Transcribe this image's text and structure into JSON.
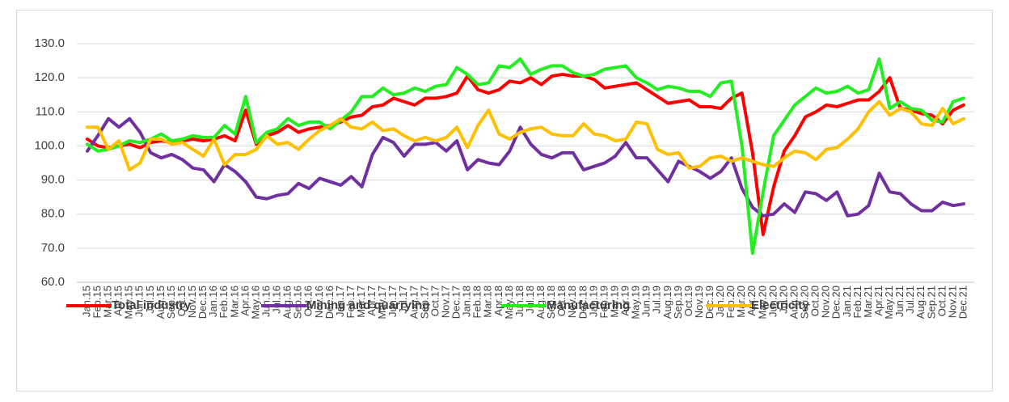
{
  "chart_data": {
    "type": "line",
    "categories": [
      "Jan.15",
      "Feb.15",
      "Mar.15",
      "Apr.15",
      "May.15",
      "Jun.15",
      "Jul.15",
      "Aug.15",
      "Sep.15",
      "Oct.15",
      "Nov.15",
      "Dec.15",
      "Jan.16",
      "Feb.16",
      "Mar.16",
      "Apr.16",
      "May.16",
      "Jun.16",
      "Jul.16",
      "Aug.16",
      "Sep.16",
      "Oct.16",
      "Nov.16",
      "Dec.16",
      "Jan.17",
      "Feb.17",
      "Mar.17",
      "Apr.17",
      "May.17",
      "Jun.17",
      "Jul.17",
      "Aug.17",
      "Sep.17",
      "Oct.17",
      "Nov.17",
      "Dec.17",
      "Jan.18",
      "Feb.18",
      "Mar.18",
      "Apr.18",
      "May.18",
      "Jun.18",
      "Jul.18",
      "Aug.18",
      "Sep.18",
      "Oct.18",
      "Nov.18",
      "Dec.18",
      "Jan.19",
      "Feb.19",
      "Mar.19",
      "Apr.19",
      "May.19",
      "Jun.19",
      "Jul.19",
      "Aug.19",
      "Sep.19",
      "Oct.19",
      "Nov.19",
      "Dec.19",
      "Jan.20",
      "Feb.20",
      "Mar.20",
      "Apr.20",
      "May.20",
      "Jun.20",
      "Jul.20",
      "Aug.20",
      "Sep.20",
      "Oct.20",
      "Nov.20",
      "Dec.20",
      "Jan.21",
      "Feb.21",
      "Mar.21",
      "Apr.21",
      "May.21",
      "Jun.21",
      "Jul.21",
      "Aug.21",
      "Sep.21",
      "Oct.21",
      "Nov.21",
      "Dec.21"
    ],
    "series": [
      {
        "name": "Total industry",
        "color": "#ff0000",
        "values": [
          102,
          100,
          99.5,
          100,
          100.5,
          99.5,
          101,
          101.5,
          101,
          101.5,
          102,
          101.5,
          102,
          103,
          101.5,
          110.5,
          100.5,
          103,
          104,
          106,
          104,
          105,
          105.5,
          106,
          107,
          108.5,
          109,
          111.5,
          112,
          114,
          113,
          112,
          114,
          114,
          114.5,
          115.5,
          120.5,
          116.5,
          115.5,
          116.5,
          119,
          118.5,
          120,
          118,
          120.5,
          121,
          120.5,
          120.5,
          119.5,
          117,
          117.5,
          118,
          118.5,
          116.5,
          114.5,
          112.5,
          113,
          113.5,
          111.5,
          111.5,
          111,
          114,
          115.5,
          98,
          74,
          88,
          98.5,
          103,
          108.5,
          110,
          112,
          111.5,
          112.5,
          113.5,
          113.5,
          116,
          120,
          111,
          110.5,
          109.5,
          109,
          106.5,
          110.5,
          112
        ]
      },
      {
        "name": "Mining and quarrying",
        "color": "#7030a0",
        "values": [
          98.5,
          103,
          108,
          105.5,
          108,
          104,
          98,
          96.5,
          97.5,
          96,
          93.5,
          93,
          89.5,
          94.5,
          92.5,
          89.5,
          85,
          84.5,
          85.5,
          86,
          89,
          87.5,
          90.5,
          89.5,
          88.5,
          91,
          88,
          97.5,
          102.5,
          101,
          97,
          100.5,
          100.5,
          101,
          98.5,
          101.5,
          93,
          96,
          95,
          94.5,
          98.5,
          105.5,
          100.5,
          97.5,
          96.5,
          98,
          98,
          93,
          94,
          95,
          97,
          101,
          96.5,
          96.5,
          93,
          89.5,
          95.5,
          94,
          92.5,
          90.5,
          92.5,
          96.5,
          87.5,
          82,
          79.5,
          80,
          83,
          80.5,
          86.5,
          86,
          84,
          86.5,
          79.5,
          80,
          82.5,
          92,
          86.5,
          86,
          83,
          81,
          81,
          83.5,
          82.5,
          83
        ]
      },
      {
        "name": "Manufacturing",
        "color": "#22ee22",
        "values": [
          100.5,
          98.5,
          99,
          100,
          101.5,
          101,
          102,
          103.5,
          101.5,
          102,
          103,
          102.5,
          102.5,
          106,
          103.5,
          114.5,
          101,
          104,
          105,
          108,
          106,
          107,
          107,
          105,
          107.5,
          110,
          114.5,
          114.5,
          117,
          115,
          115.5,
          117,
          116,
          117.5,
          118,
          123,
          121,
          118,
          118.5,
          123.5,
          123,
          125.5,
          121,
          122.5,
          123.5,
          123.5,
          121.5,
          120.5,
          121,
          122.5,
          123,
          123.5,
          120,
          118.5,
          116.5,
          117.5,
          117,
          116,
          116,
          114.5,
          118.5,
          119,
          100,
          68.5,
          86.5,
          103,
          107.5,
          112,
          114.5,
          117,
          115.5,
          116,
          117.5,
          115.5,
          116.5,
          125.5,
          111,
          113,
          111,
          110.5,
          107.5,
          107,
          113,
          114
        ]
      },
      {
        "name": "Electricity",
        "color": "#ffc000",
        "values": [
          105.5,
          105.5,
          99,
          101.5,
          93,
          95,
          102,
          102,
          100.5,
          101,
          99,
          97,
          102,
          94.5,
          97.5,
          97.5,
          99,
          103,
          100.5,
          101,
          99,
          102,
          104.5,
          106,
          108,
          105.5,
          105,
          107,
          104.5,
          105,
          103,
          101.5,
          102.5,
          101.5,
          102.5,
          105.5,
          99.5,
          106,
          110.5,
          103.5,
          102,
          104,
          105,
          105.5,
          103.5,
          103,
          103,
          106.5,
          103.5,
          103,
          101.5,
          102,
          107,
          106.5,
          99,
          97.5,
          98,
          93.5,
          94,
          96.5,
          97,
          95.5,
          96.5,
          95.5,
          94.5,
          94,
          96.5,
          98.5,
          98,
          96,
          99,
          99.5,
          102,
          105,
          110,
          113,
          109,
          111,
          110,
          106.5,
          106,
          111,
          106.5,
          108
        ]
      }
    ],
    "ylim": [
      60,
      130
    ],
    "yticks": [
      {
        "value": 60,
        "label": "60.0"
      },
      {
        "value": 70,
        "label": "70.0"
      },
      {
        "value": 80,
        "label": "80.0"
      },
      {
        "value": 90,
        "label": "90.0"
      },
      {
        "value": 100,
        "label": "100.0"
      },
      {
        "value": 110,
        "label": "110.0"
      },
      {
        "value": 120,
        "label": "120.0"
      },
      {
        "value": 130,
        "label": "130.0"
      }
    ],
    "grid": true,
    "legend": "bottom"
  }
}
